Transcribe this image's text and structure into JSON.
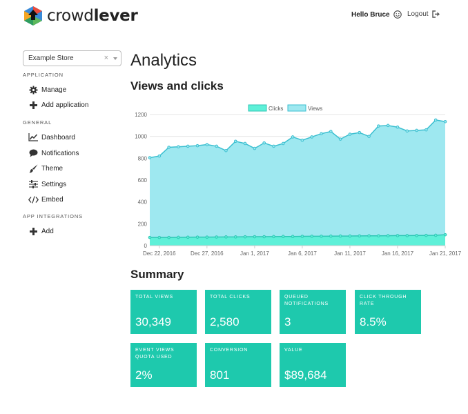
{
  "brand": {
    "name_light": "crowd",
    "name_bold": "lever"
  },
  "header": {
    "greeting": "Hello Bruce",
    "logout_label": "Logout"
  },
  "sidebar": {
    "store_selected": "Example Store",
    "clear_symbol": "×",
    "sections": [
      {
        "title": "APPLICATION"
      },
      {
        "title": "GENERAL"
      },
      {
        "title": "APP INTEGRATIONS"
      }
    ],
    "items": [
      {
        "label": "Manage",
        "icon": "gear-icon"
      },
      {
        "label": "Add application",
        "icon": "plus-icon"
      },
      {
        "label": "Dashboard",
        "icon": "line-chart-icon"
      },
      {
        "label": "Notifications",
        "icon": "speech-bubble-icon"
      },
      {
        "label": "Theme",
        "icon": "paint-brush-icon"
      },
      {
        "label": "Settings",
        "icon": "sliders-icon"
      },
      {
        "label": "Embed",
        "icon": "code-icon"
      },
      {
        "label": "Add",
        "icon": "plus-icon"
      }
    ]
  },
  "main": {
    "title": "Analytics",
    "chart_heading": "Views and clicks",
    "summary_heading": "Summary"
  },
  "summary": {
    "cards": [
      {
        "label": "TOTAL VIEWS",
        "value": "30,349"
      },
      {
        "label": "TOTAL CLICKS",
        "value": "2,580"
      },
      {
        "label": "QUEUED NOTIFICATIONS",
        "value": "3"
      },
      {
        "label": "CLICK THROUGH RATE",
        "value": "8.5%"
      },
      {
        "label": "EVENT VIEWS QUOTA USED",
        "value": "2%"
      },
      {
        "label": "CONVERSION",
        "value": "801"
      },
      {
        "label": "VALUE",
        "value": "$89,684"
      }
    ]
  },
  "colors": {
    "accent": "#1ec9ad",
    "views_fill": "#9ee8f0",
    "views_line": "#3bbfd0",
    "clicks_fill": "#5ef0d8",
    "clicks_line": "#2ec6b5"
  },
  "chart_data": {
    "type": "area",
    "title": "",
    "xlabel": "",
    "ylabel": "",
    "ylim": [
      0,
      1200
    ],
    "yticks": [
      0,
      200,
      400,
      600,
      800,
      1000,
      1200
    ],
    "grid": true,
    "legend_position": "top-center",
    "x": [
      "Dec 21, 2016",
      "Dec 22, 2016",
      "Dec 23, 2016",
      "Dec 24, 2016",
      "Dec 25, 2016",
      "Dec 26, 2016",
      "Dec 27, 2016",
      "Dec 28, 2016",
      "Dec 29, 2016",
      "Dec 30, 2016",
      "Dec 31, 2016",
      "Jan 1, 2017",
      "Jan 2, 2017",
      "Jan 3, 2017",
      "Jan 4, 2017",
      "Jan 5, 2017",
      "Jan 6, 2017",
      "Jan 7, 2017",
      "Jan 8, 2017",
      "Jan 9, 2017",
      "Jan 10, 2017",
      "Jan 11, 2017",
      "Jan 12, 2017",
      "Jan 13, 2017",
      "Jan 14, 2017",
      "Jan 15, 2017",
      "Jan 16, 2017",
      "Jan 17, 2017",
      "Jan 18, 2017",
      "Jan 19, 2017",
      "Jan 20, 2017",
      "Jan 21, 2017"
    ],
    "xtick_labels": [
      "Dec 22, 2016",
      "Dec 27, 2016",
      "Jan 1, 2017",
      "Jan 6, 2017",
      "Jan 11, 2017",
      "Jan 16, 2017",
      "Jan 21, 2017"
    ],
    "series": [
      {
        "name": "Clicks",
        "values": [
          75,
          75,
          75,
          76,
          77,
          78,
          78,
          79,
          80,
          80,
          81,
          82,
          82,
          83,
          84,
          84,
          85,
          86,
          86,
          87,
          88,
          88,
          89,
          90,
          90,
          91,
          92,
          92,
          93,
          94,
          95,
          100
        ]
      },
      {
        "name": "Views",
        "values": [
          805,
          820,
          900,
          905,
          910,
          915,
          925,
          910,
          870,
          955,
          935,
          890,
          940,
          910,
          935,
          995,
          965,
          995,
          1025,
          1045,
          975,
          1020,
          1035,
          1000,
          1095,
          1100,
          1085,
          1050,
          1055,
          1060,
          1150,
          1135
        ]
      }
    ]
  }
}
